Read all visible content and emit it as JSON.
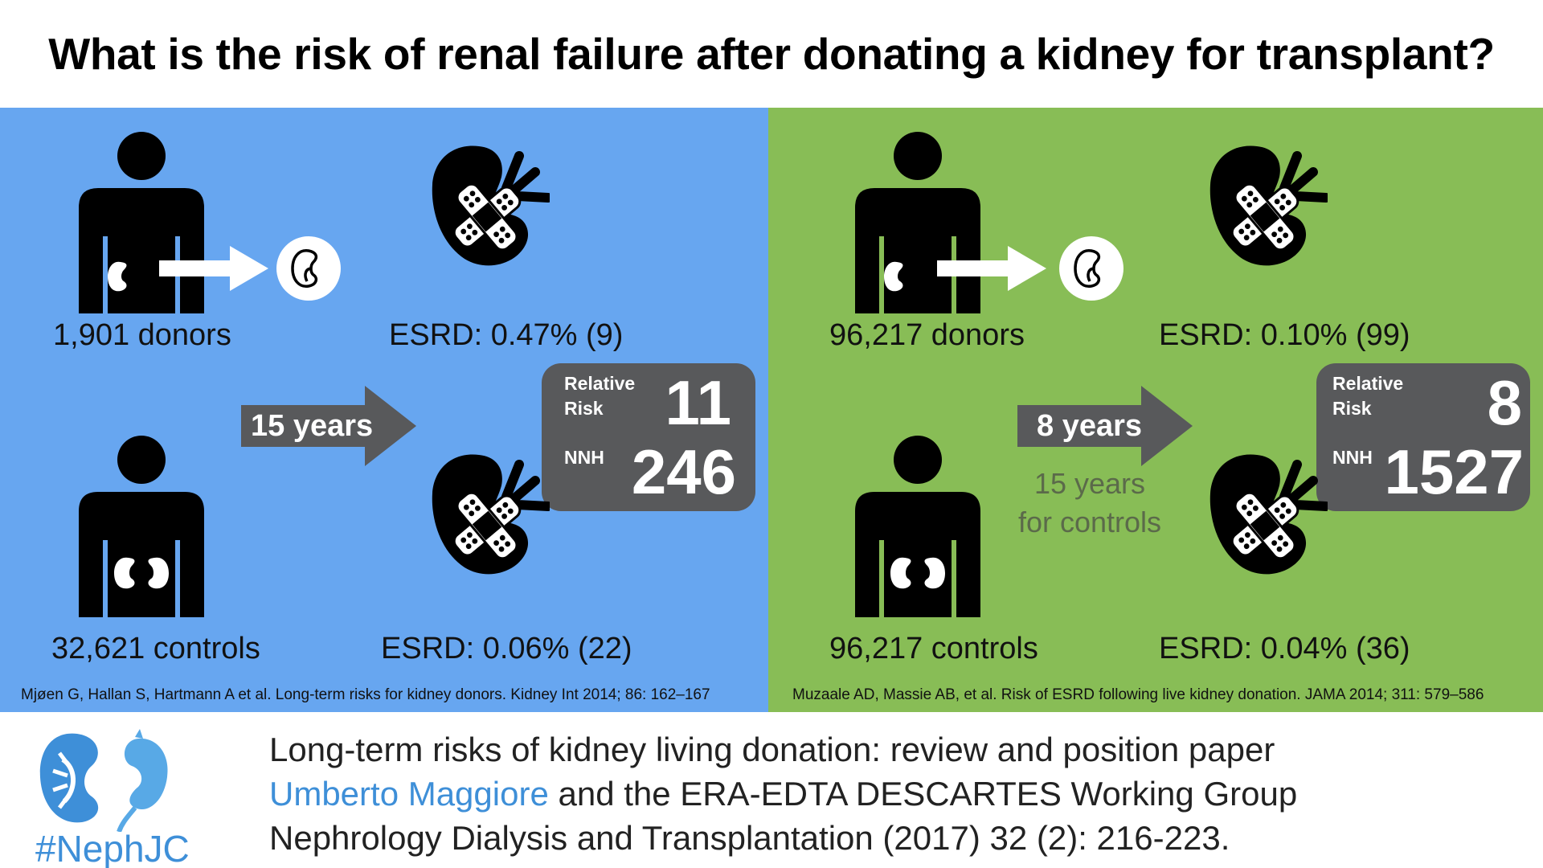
{
  "title": "What is the risk of renal failure after donating a kidney for transplant?",
  "colors": {
    "left_panel": "#67a6f0",
    "right_panel": "#88bd56",
    "dark_box": "#58595b",
    "accent_blue": "#3e8fd8"
  },
  "icons": {
    "person": "person-silhouette-icon",
    "kidney": "kidney-icon",
    "broken_kidney": "bandaged-kidney-icon",
    "arrow": "right-arrow-icon"
  },
  "left": {
    "donors_label": "1,901 donors",
    "donors_esrd": "ESRD: 0.47% (9)",
    "controls_label": "32,621 controls",
    "controls_esrd": "ESRD: 0.06% (22)",
    "follow_up": "15 years",
    "rr_label_1": "Relative",
    "rr_label_2": "Risk",
    "rr_value": "11",
    "nnh_label": "NNH",
    "nnh_value": "246",
    "citation": "Mjøen G, Hallan S, Hartmann A et al. Long-term risks for kidney donors. Kidney Int 2014; 86: 162–167"
  },
  "right": {
    "donors_label": "96,217 donors",
    "donors_esrd": "ESRD: 0.10% (99)",
    "controls_label": "96,217 controls",
    "controls_esrd": "ESRD: 0.04% (36)",
    "follow_up": "8 years",
    "controls_follow_up_1": "15 years",
    "controls_follow_up_2": "for controls",
    "rr_label_1": "Relative",
    "rr_label_2": "Risk",
    "rr_value": "8",
    "nnh_label": "NNH",
    "nnh_value": "1527",
    "citation": "Muzaale AD, Massie AB, et al. Risk of ESRD following live kidney donation. JAMA 2014; 311: 579–586"
  },
  "footer": {
    "hashtag": "#NephJC",
    "line1": "Long-term risks of kidney living donation: review and position paper",
    "line2_author": "Umberto Maggiore",
    "line2_rest": " and the ERA-EDTA DESCARTES Working Group",
    "line3": "Nephrology Dialysis and Transplantation (2017) 32 (2): 216-223."
  }
}
